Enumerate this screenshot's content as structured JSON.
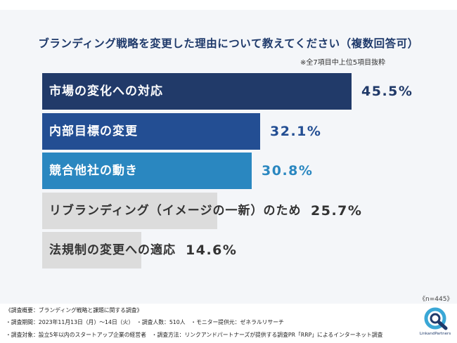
{
  "chart_data": {
    "type": "bar",
    "orientation": "horizontal",
    "title": "ブランディング戦略を変更した理由について教えてください（複数回答可）",
    "note": "※全7項目中上位5項目抜粋",
    "categories": [
      "市場の変化への対応",
      "内部目標の変更",
      "競合他社の動き",
      "リブランディング（イメージの一新）のため",
      "法規制の変更への適応"
    ],
    "values": [
      45.5,
      32.1,
      30.8,
      25.7,
      14.6
    ],
    "value_labels": [
      "45.5%",
      "32.1%",
      "30.8%",
      "25.7%",
      "14.6%"
    ],
    "xlim": [
      0,
      50
    ],
    "sample_size": "《n=445》",
    "colors": {
      "bars": [
        "#213a69",
        "#234e93",
        "#2a87c0",
        "#dcdcdc",
        "#dcdcdc"
      ],
      "value_text": [
        "#213a69",
        "#234e93",
        "#2a87c0",
        "#333333",
        "#333333"
      ],
      "label_text": [
        "#ffffff",
        "#ffffff",
        "#ffffff",
        "#333333",
        "#333333"
      ]
    }
  },
  "footer": {
    "survey_summary": "《調査概要：ブランディング戦略と課題に関する調査》",
    "line1": "・調査期間：2023年11月13日（月）〜14日（火）　・調査人数：510人　・モニター提供元：ゼネラルリサーチ",
    "line2": "・調査対象：設立5年以内のスタートアップ企業の経営者　・調査方法：リンクアンドパートナーズが提供する調査PR「RRP」によるインターネット調査"
  },
  "logo": {
    "text": "LinkandPartners",
    "colors": {
      "primary": "#1f3a6b",
      "accent": "#3aa7d6"
    }
  }
}
